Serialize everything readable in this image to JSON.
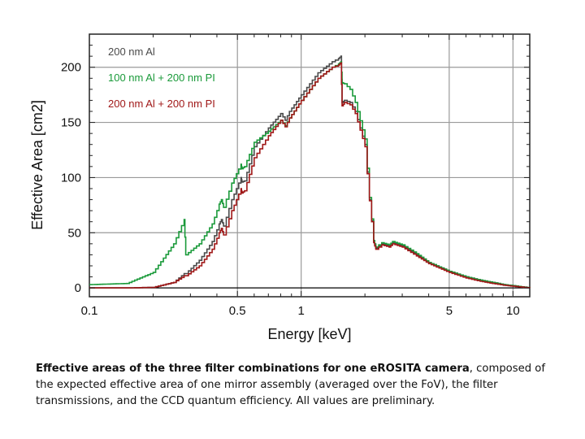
{
  "chart_data": {
    "type": "line",
    "title": "",
    "xlabel": "Energy  [keV]",
    "ylabel": "Effective Area  [cm2]",
    "xscale": "log",
    "xlim": [
      0.1,
      12
    ],
    "ylim": [
      -8,
      230
    ],
    "xticks": [
      0.1,
      0.5,
      1,
      5,
      10
    ],
    "xtick_labels": [
      "0.1",
      "0.5",
      "1",
      "5",
      "10"
    ],
    "yticks": [
      0,
      50,
      100,
      150,
      200
    ],
    "ytick_labels": [
      "0",
      "50",
      "100",
      "150",
      "200"
    ],
    "grid": true,
    "legend": "top-left",
    "series": [
      {
        "name": "200 nm Al",
        "color": "#4a4a4a",
        "x": [
          0.1,
          0.15,
          0.2,
          0.25,
          0.28,
          0.285,
          0.33,
          0.38,
          0.41,
          0.42,
          0.43,
          0.47,
          0.52,
          0.525,
          0.54,
          0.6,
          0.7,
          0.8,
          0.84,
          0.88,
          1.0,
          1.2,
          1.4,
          1.5,
          1.54,
          1.56,
          1.6,
          1.7,
          1.8,
          2.0,
          2.1,
          2.2,
          2.25,
          2.4,
          2.6,
          2.7,
          3.0,
          3.5,
          4.0,
          5.0,
          6.0,
          7.0,
          8.0,
          9.0,
          10.0,
          12.0
        ],
        "values": [
          0,
          0,
          0.5,
          5,
          13,
          13,
          25,
          42,
          58,
          62,
          56,
          80,
          100,
          96,
          97,
          128,
          145,
          158,
          152,
          160,
          175,
          195,
          205,
          208,
          210,
          168,
          170,
          168,
          160,
          130,
          80,
          42,
          36,
          40,
          38,
          41,
          38,
          30,
          23,
          15,
          10,
          7,
          5,
          3,
          2,
          0
        ]
      },
      {
        "name": "100 nm Al + 200 nm PI",
        "color": "#1a9a3a",
        "x": [
          0.1,
          0.15,
          0.2,
          0.25,
          0.28,
          0.285,
          0.33,
          0.38,
          0.41,
          0.42,
          0.43,
          0.47,
          0.52,
          0.525,
          0.54,
          0.6,
          0.7,
          0.8,
          0.84,
          0.88,
          1.0,
          1.2,
          1.4,
          1.5,
          1.54,
          1.56,
          1.6,
          1.7,
          1.8,
          2.0,
          2.1,
          2.2,
          2.25,
          2.4,
          2.6,
          2.7,
          3.0,
          3.5,
          4.0,
          5.0,
          6.0,
          7.0,
          8.0,
          9.0,
          10.0,
          12.0
        ],
        "values": [
          3,
          4,
          14,
          40,
          62,
          30,
          40,
          58,
          76,
          80,
          73,
          95,
          112,
          108,
          110,
          132,
          142,
          152,
          147,
          154,
          170,
          190,
          200,
          203,
          205,
          186,
          185,
          180,
          168,
          135,
          82,
          43,
          37,
          41,
          39,
          42,
          39,
          31,
          23,
          15,
          10,
          7,
          5,
          3,
          2,
          0
        ]
      },
      {
        "name": "200 nm Al + 200 nm PI",
        "color": "#a01818",
        "x": [
          0.1,
          0.15,
          0.2,
          0.25,
          0.28,
          0.285,
          0.33,
          0.38,
          0.41,
          0.42,
          0.43,
          0.47,
          0.52,
          0.525,
          0.54,
          0.6,
          0.7,
          0.8,
          0.84,
          0.88,
          1.0,
          1.2,
          1.4,
          1.5,
          1.54,
          1.56,
          1.6,
          1.7,
          1.8,
          2.0,
          2.1,
          2.2,
          2.25,
          2.4,
          2.6,
          2.7,
          3.0,
          3.5,
          4.0,
          5.0,
          6.0,
          7.0,
          8.0,
          9.0,
          10.0,
          12.0
        ],
        "values": [
          0,
          0,
          0.5,
          5,
          11,
          11,
          20,
          35,
          50,
          54,
          48,
          70,
          90,
          86,
          88,
          118,
          138,
          152,
          146,
          154,
          170,
          190,
          200,
          202,
          204,
          165,
          168,
          166,
          158,
          128,
          79,
          41,
          35,
          39,
          37,
          40,
          37,
          29,
          22,
          14,
          9,
          6,
          4,
          2.5,
          1.5,
          0
        ]
      }
    ]
  },
  "caption": {
    "bold": "Effective areas of the three filter combinations for one eROSITA camera",
    "rest": ", composed of the expected effective area of one mirror assembly (averaged over the FoV), the filter transmissions, and the CCD quantum efficiency. All values are preliminary."
  }
}
